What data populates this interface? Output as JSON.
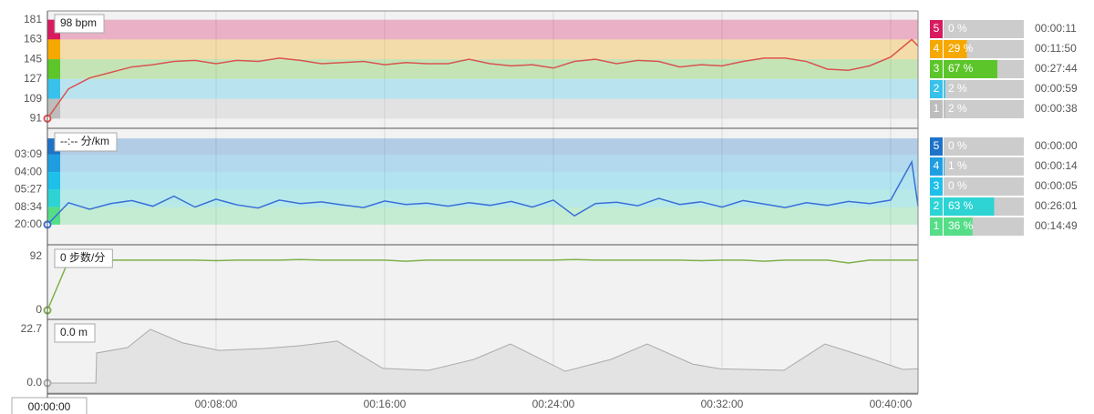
{
  "chart_data": [
    {
      "type": "line",
      "readout": "98 bpm",
      "x": [
        0,
        60,
        120,
        180,
        240,
        300,
        360,
        420,
        480,
        540,
        600,
        660,
        720,
        780,
        840,
        900,
        960,
        1020,
        1080,
        1140,
        1200,
        1260,
        1320,
        1380,
        1440,
        1500,
        1560,
        1620,
        1680,
        1740,
        1800,
        1860,
        1920,
        1980,
        2040,
        2100,
        2160,
        2220,
        2280,
        2340,
        2400,
        2460,
        2478
      ],
      "series": [
        {
          "color": "#d9534f",
          "values": [
            91,
            118,
            128,
            133,
            138,
            140,
            143,
            144,
            141,
            144,
            143,
            146,
            144,
            141,
            142,
            143,
            140,
            142,
            141,
            141,
            145,
            141,
            139,
            140,
            137,
            143,
            145,
            141,
            144,
            143,
            138,
            140,
            139,
            143,
            146,
            146,
            143,
            136,
            135,
            139,
            147,
            163,
            157
          ]
        }
      ],
      "ylim": [
        83,
        189
      ],
      "yticks": [
        91,
        109,
        127,
        145,
        163,
        181
      ],
      "zones": {
        "names": [
          "5",
          "4",
          "3",
          "2",
          "1"
        ],
        "colors": [
          "#d81b60",
          "#f5a800",
          "#5cc52a",
          "#38c1ea",
          "#bdbdbd"
        ],
        "percent": [
          0,
          29,
          67,
          2,
          2
        ],
        "percent_labels": [
          "0 %",
          "29 %",
          "67 %",
          "2 %",
          "2 %"
        ],
        "times": [
          "00:00:11",
          "00:11:50",
          "00:27:44",
          "00:00:59",
          "00:00:38"
        ]
      }
    },
    {
      "type": "line",
      "readout": "--:-- 分/km",
      "x": [
        0,
        60,
        120,
        180,
        240,
        300,
        360,
        420,
        480,
        540,
        600,
        660,
        720,
        780,
        840,
        900,
        960,
        1020,
        1080,
        1140,
        1200,
        1260,
        1320,
        1380,
        1440,
        1500,
        1560,
        1620,
        1680,
        1740,
        1800,
        1860,
        1920,
        1980,
        2040,
        2100,
        2160,
        2220,
        2280,
        2340,
        2400,
        2460,
        2478
      ],
      "series": [
        {
          "color": "#3a6fd8",
          "values": [
            3.0,
            8,
            6.5,
            7.8,
            8.5,
            7.2,
            9.5,
            7,
            8.8,
            7.5,
            6.8,
            8.6,
            7.8,
            8.2,
            7.5,
            6.9,
            8.4,
            7.6,
            7.9,
            7.2,
            8.0,
            7.4,
            8.3,
            7.0,
            8.6,
            5.0,
            7.8,
            8.1,
            7.3,
            9.0,
            7.6,
            8.2,
            7.0,
            8.5,
            7.7,
            6.9,
            8.0,
            7.4,
            8.3,
            7.8,
            8.6,
            17.3,
            7.2
          ]
        }
      ],
      "ylim": [
        -1.4,
        24.8
      ],
      "yticks": [
        {
          "value": 3,
          "label": "20:00"
        },
        {
          "value": 7,
          "label": "08:34"
        },
        {
          "value": 11,
          "label": "05:27"
        },
        {
          "value": 15,
          "label": "04:00"
        },
        {
          "value": 19,
          "label": "03:09"
        }
      ],
      "zone_top": 22.7,
      "zones": {
        "names": [
          "5",
          "4",
          "3",
          "2",
          "1"
        ],
        "colors": [
          "#1e73c8",
          "#1e9ee0",
          "#1ec0ea",
          "#2ed3d3",
          "#55dd88"
        ],
        "percent": [
          0,
          1,
          0,
          63,
          36
        ],
        "percent_labels": [
          "0 %",
          "1 %",
          "0 %",
          "63 %",
          "36 %"
        ],
        "times": [
          "00:00:00",
          "00:00:14",
          "00:00:05",
          "00:26:01",
          "00:14:49"
        ]
      }
    },
    {
      "type": "line",
      "readout": "0 步数/分",
      "x": [
        0,
        60,
        120,
        180,
        240,
        300,
        360,
        420,
        480,
        540,
        600,
        660,
        720,
        780,
        840,
        900,
        960,
        1020,
        1080,
        1140,
        1200,
        1260,
        1320,
        1380,
        1440,
        1500,
        1560,
        1620,
        1680,
        1740,
        1800,
        1860,
        1920,
        1980,
        2040,
        2100,
        2160,
        2220,
        2280,
        2340,
        2400,
        2460,
        2478
      ],
      "series": [
        {
          "color": "#7fb04a",
          "values": [
            0,
            85,
            86,
            86,
            86,
            86,
            86,
            86,
            85,
            86,
            86,
            86,
            87,
            86,
            86,
            86,
            86,
            84,
            86,
            86,
            86,
            86,
            86,
            86,
            86,
            87,
            86,
            86,
            86,
            86,
            86,
            85,
            86,
            86,
            84,
            86,
            86,
            86,
            81,
            86,
            86,
            86,
            86
          ]
        }
      ],
      "ylim": [
        -14,
        110.7
      ],
      "yticks": [
        0,
        92
      ]
    },
    {
      "type": "area",
      "readout": "0.0 m",
      "cursor_time": "00:00:00",
      "x": [
        0,
        138,
        140,
        228,
        293,
        384,
        488,
        618,
        721,
        825,
        955,
        1085,
        1214,
        1318,
        1474,
        1604,
        1707,
        1837,
        1915,
        2096,
        2213,
        2330,
        2434,
        2478
      ],
      "series": [
        {
          "color": "#aaaaaa",
          "values": [
            0,
            0,
            12.7,
            15,
            22.7,
            17,
            13.8,
            14.6,
            15.8,
            17.7,
            6.2,
            5.4,
            10,
            16.5,
            5.0,
            10,
            16.5,
            8,
            6,
            5.4,
            16.5,
            11,
            5.8,
            6
          ]
        }
      ],
      "ylim": [
        -4.2,
        26.5
      ],
      "yticks": [
        {
          "value": 0,
          "label": "0.0"
        },
        22.7
      ],
      "xlim": [
        0,
        2478
      ],
      "xticks": [
        {
          "value": 480,
          "label": "00:08:00"
        },
        {
          "value": 960,
          "label": "00:16:00"
        },
        {
          "value": 1440,
          "label": "00:24:00"
        },
        {
          "value": 1920,
          "label": "00:32:00"
        },
        {
          "value": 2400,
          "label": "00:40:00"
        }
      ]
    }
  ]
}
